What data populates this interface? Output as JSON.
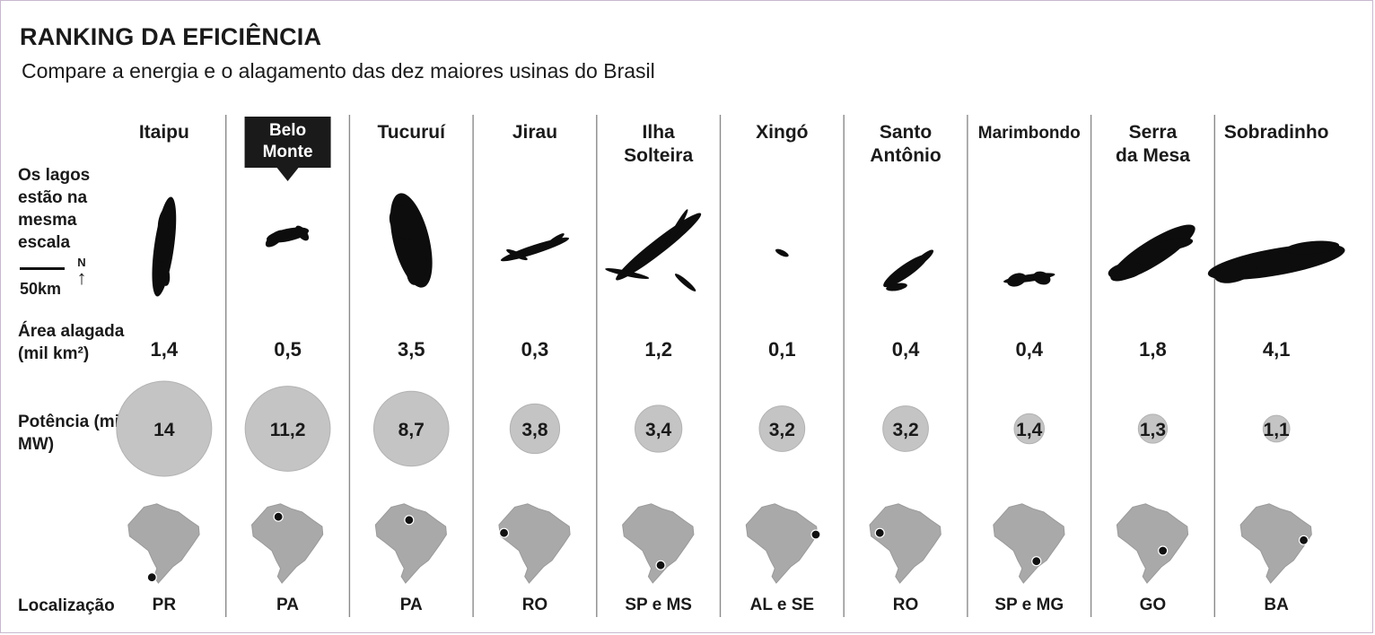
{
  "title": "RANKING DA EFICIÊNCIA",
  "subtitle": "Compare a energia e o alagamento das dez maiores usinas do Brasil",
  "row_labels": {
    "lakes": "Os lagos estão na mesma escala",
    "area": "Área alagada (mil km²)",
    "power": "Potência (mil MW)",
    "location": "Localização"
  },
  "scale": {
    "label": "50km",
    "north": "N"
  },
  "colors": {
    "bubble": "#c4c4c4",
    "highlight_box": "#1a1a1a",
    "lake": "#0d0d0d",
    "map": "#a9a9a9",
    "divider": "#8a8a8a"
  },
  "chart_data": {
    "type": "table",
    "categories": [
      "Itaipu",
      "Belo Monte",
      "Tucuruí",
      "Jirau",
      "Ilha Solteira",
      "Xingó",
      "Santo Antônio",
      "Marimbondo",
      "Serra da Mesa",
      "Sobradinho"
    ],
    "name_lines": [
      [
        "Itaipu"
      ],
      [
        "Belo",
        "Monte"
      ],
      [
        "Tucuruí"
      ],
      [
        "Jirau"
      ],
      [
        "Ilha",
        "Solteira"
      ],
      [
        "Xingó"
      ],
      [
        "Santo",
        "Antônio"
      ],
      [
        "Marimbondo"
      ],
      [
        "Serra",
        "da Mesa"
      ],
      [
        "Sobradinho"
      ]
    ],
    "highlighted": "Belo Monte",
    "series": [
      {
        "name": "Área alagada (mil km²)",
        "values": [
          1.4,
          0.5,
          3.5,
          0.3,
          1.2,
          0.1,
          0.4,
          0.4,
          1.8,
          4.1
        ],
        "labels": [
          "1,4",
          "0,5",
          "3,5",
          "0,3",
          "1,2",
          "0,1",
          "0,4",
          "0,4",
          "1,8",
          "4,1"
        ]
      },
      {
        "name": "Potência (mil MW)",
        "values": [
          14,
          11.2,
          8.7,
          3.8,
          3.4,
          3.2,
          3.2,
          1.4,
          1.3,
          1.1
        ],
        "labels": [
          "14",
          "11,2",
          "8,7",
          "3,8",
          "3,4",
          "3,2",
          "3,2",
          "1,4",
          "1,3",
          "1,1"
        ]
      }
    ],
    "locations": [
      "PR",
      "PA",
      "PA",
      "RO",
      "SP e MS",
      "AL e SE",
      "RO",
      "SP e MG",
      "GO",
      "BA"
    ],
    "map_dots": [
      [
        0.33,
        0.93
      ],
      [
        0.37,
        0.18
      ],
      [
        0.47,
        0.22
      ],
      [
        0.07,
        0.38
      ],
      [
        0.53,
        0.78
      ],
      [
        0.97,
        0.4
      ],
      [
        0.14,
        0.38
      ],
      [
        0.6,
        0.73
      ],
      [
        0.64,
        0.6
      ],
      [
        0.88,
        0.47
      ]
    ]
  }
}
